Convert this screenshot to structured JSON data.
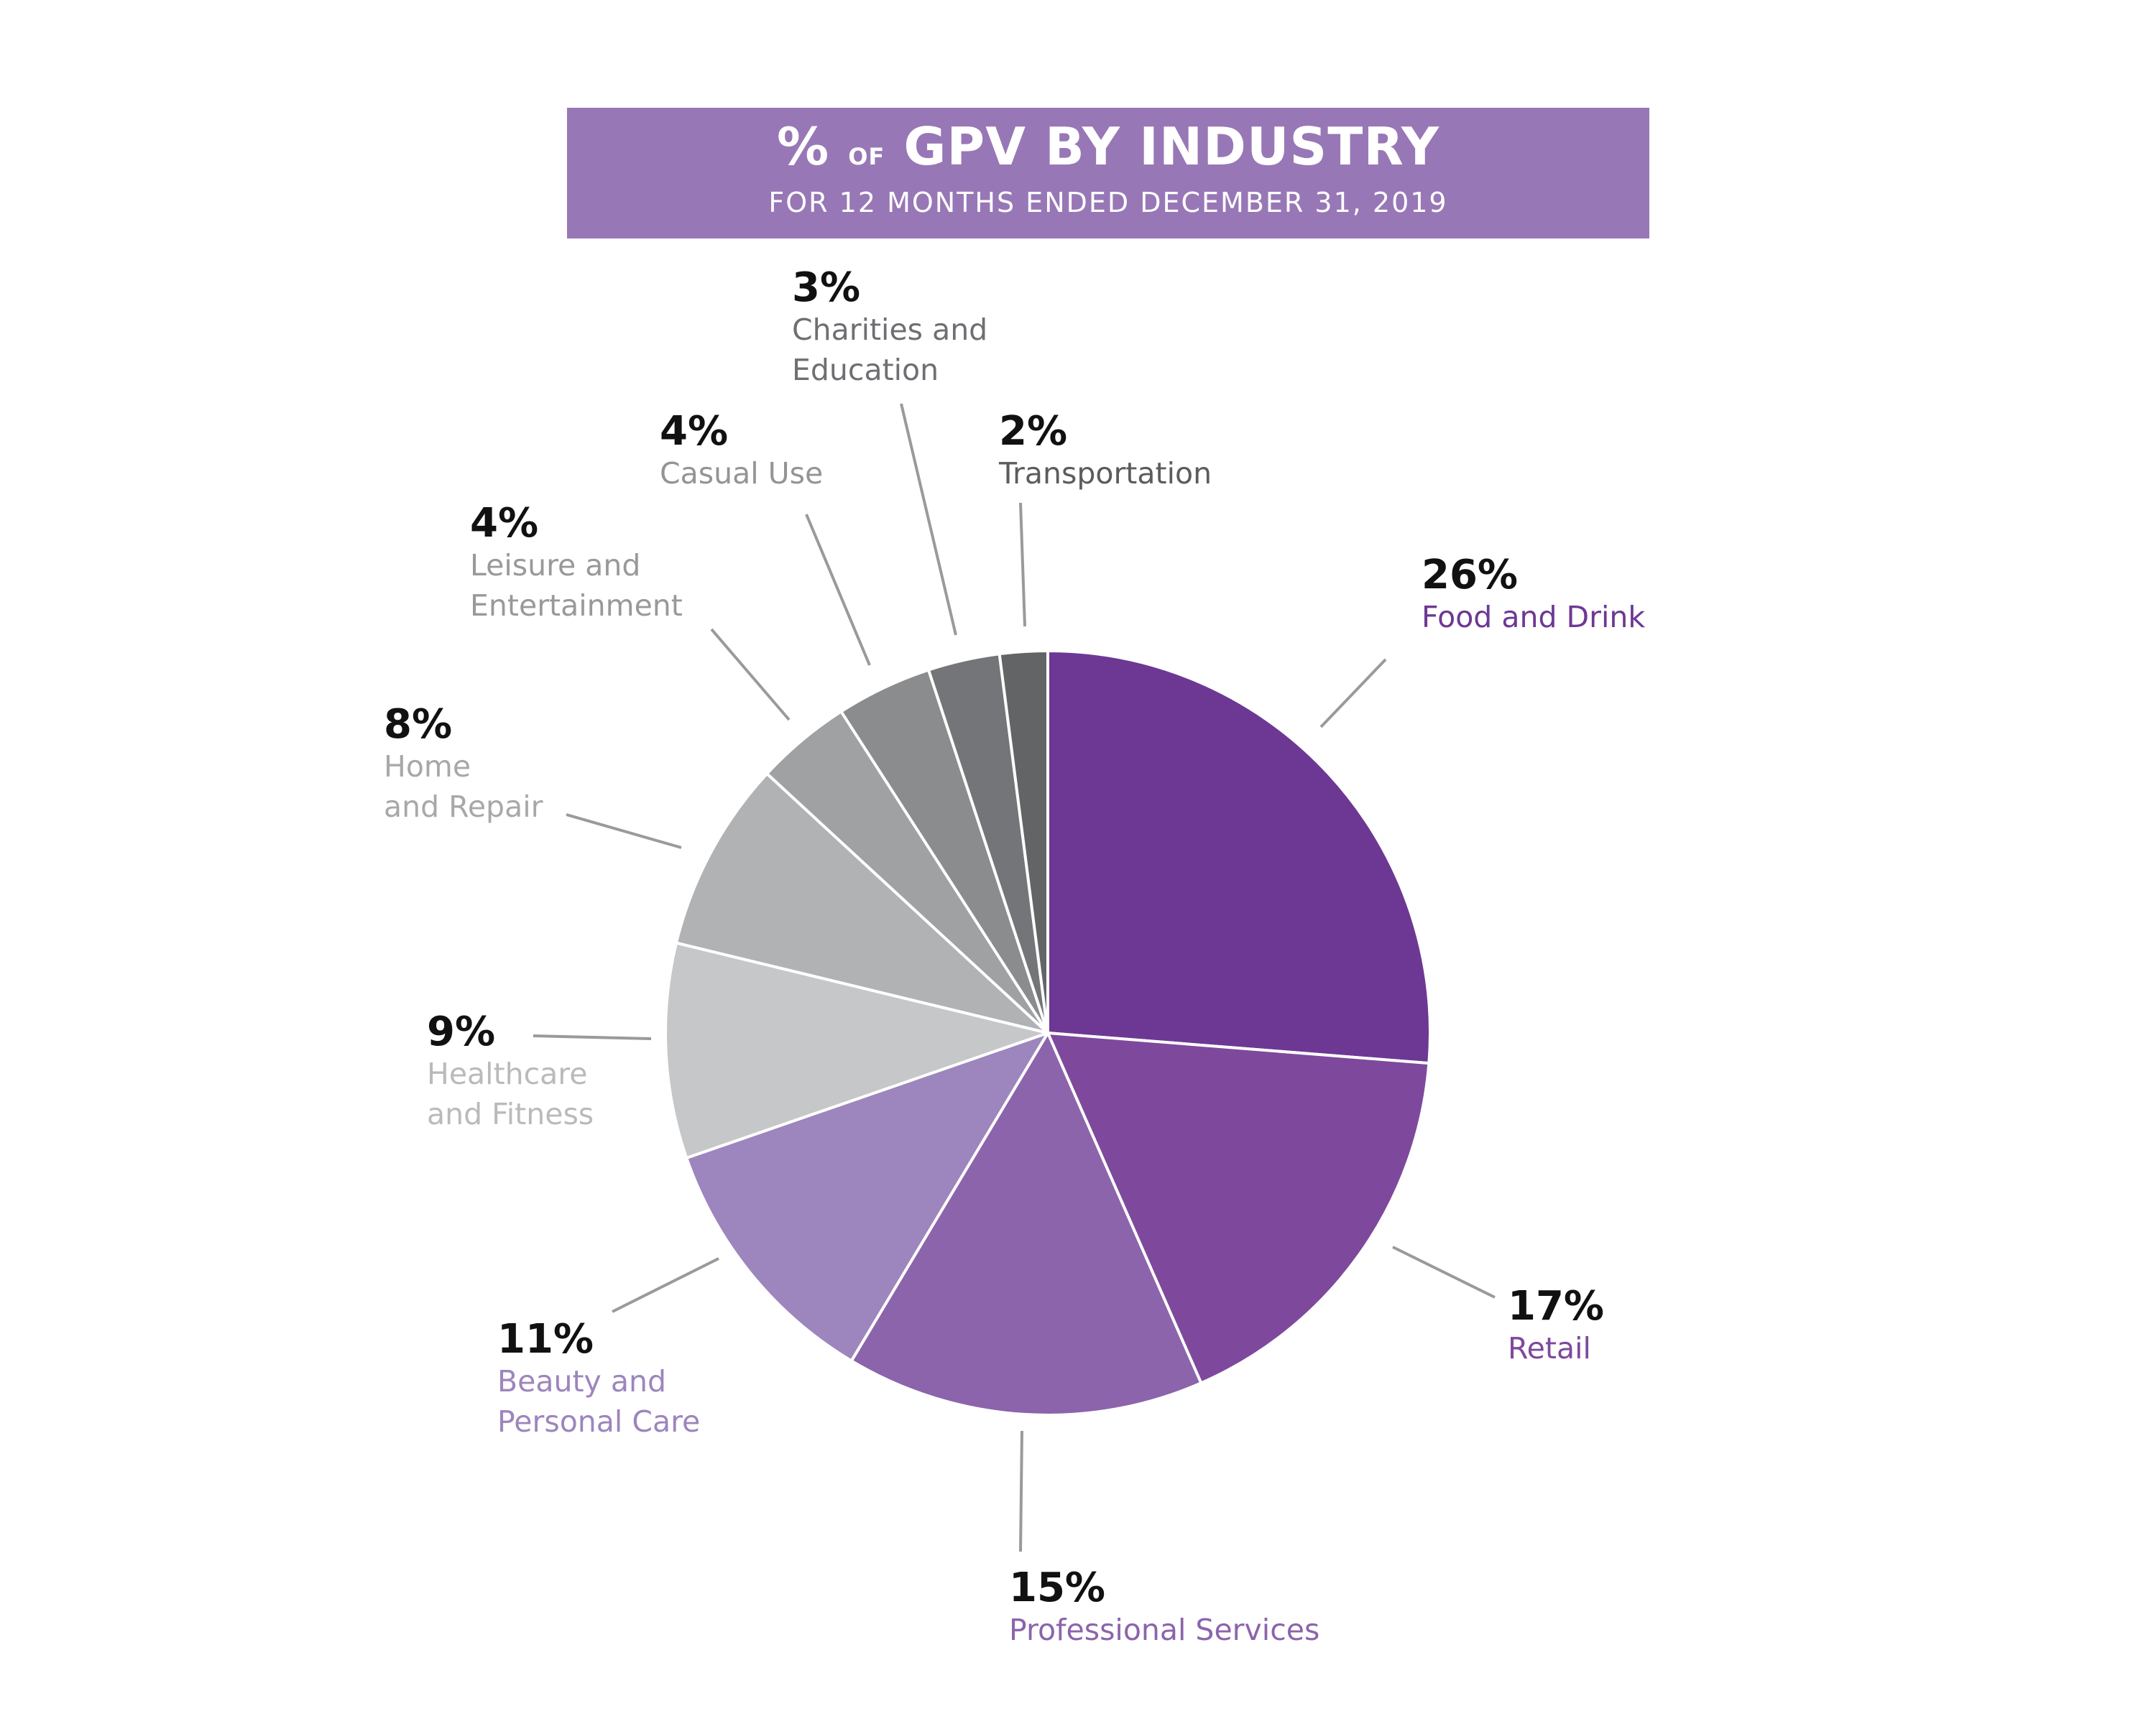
{
  "chart_data": {
    "type": "pie",
    "title": {
      "pct": "%",
      "of": "of",
      "rest": "GPV BY INDUSTRY",
      "subtitle": "FOR 12 MONTHS ENDED DECEMBER 31, 2019"
    },
    "slices": [
      {
        "name_lines": [
          "Food and Drink"
        ],
        "value": 26,
        "pct_label": "26%",
        "color": "#6d3894",
        "label_color": "#6d3894"
      },
      {
        "name_lines": [
          "Retail"
        ],
        "value": 17,
        "pct_label": "17%",
        "color": "#7e499c",
        "label_color": "#7e499c"
      },
      {
        "name_lines": [
          "Professional Services"
        ],
        "value": 15,
        "pct_label": "15%",
        "color": "#8c64ab",
        "label_color": "#8c64ab"
      },
      {
        "name_lines": [
          "Beauty and",
          "Personal Care"
        ],
        "value": 11,
        "pct_label": "11%",
        "color": "#9d85bd",
        "label_color": "#9d85bd"
      },
      {
        "name_lines": [
          "Healthcare",
          "and Fitness"
        ],
        "value": 9,
        "pct_label": "9%",
        "color": "#c6c7c9",
        "label_color": "#b9babc"
      },
      {
        "name_lines": [
          "Home",
          "and Repair"
        ],
        "value": 8,
        "pct_label": "8%",
        "color": "#b1b2b4",
        "label_color": "#a7a8aa"
      },
      {
        "name_lines": [
          "Leisure and",
          "Entertainment"
        ],
        "value": 4,
        "pct_label": "4%",
        "color": "#a0a1a3",
        "label_color": "#98999b"
      },
      {
        "name_lines": [
          "Casual Use"
        ],
        "value": 4,
        "pct_label": "4%",
        "color": "#8b8c8e",
        "label_color": "#939496"
      },
      {
        "name_lines": [
          "Charities and",
          "Education"
        ],
        "value": 3,
        "pct_label": "3%",
        "color": "#747578",
        "label_color": "#6e6f72"
      },
      {
        "name_lines": [
          "Transportation"
        ],
        "value": 2,
        "pct_label": "2%",
        "color": "#636466",
        "label_color": "#5b5c5e"
      }
    ]
  }
}
